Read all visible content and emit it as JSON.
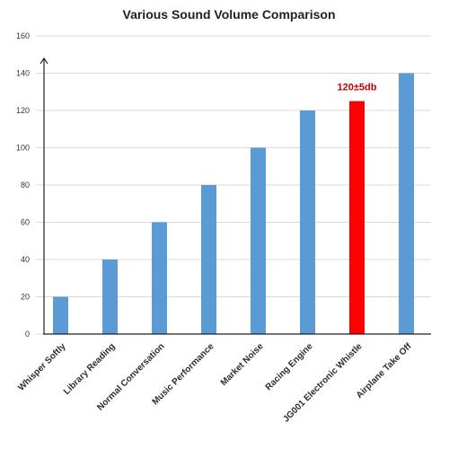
{
  "chart_data": {
    "type": "bar",
    "title": "Various Sound Volume Comparison",
    "categories": [
      "Whisper Softly",
      "Library Reading",
      "Normal Conversation",
      "Music Performance",
      "Market Noise",
      "Racing Engine",
      "JG001 Electronic Whistle",
      "Airplane Take Off"
    ],
    "values": [
      20,
      40,
      60,
      80,
      100,
      120,
      125,
      140
    ],
    "bar_colors": [
      "#5B9BD5",
      "#5B9BD5",
      "#5B9BD5",
      "#5B9BD5",
      "#5B9BD5",
      "#5B9BD5",
      "#FF0000",
      "#5B9BD5"
    ],
    "yticks": [
      "0",
      "20",
      "40",
      "60",
      "80",
      "100",
      "120",
      "140",
      "160"
    ],
    "ylim": [
      0,
      160
    ],
    "grid": true,
    "annotation": {
      "category": "JG001 Electronic Whistle",
      "text": "120±5db",
      "color": "#C00000"
    },
    "xlabel": "",
    "ylabel": ""
  }
}
